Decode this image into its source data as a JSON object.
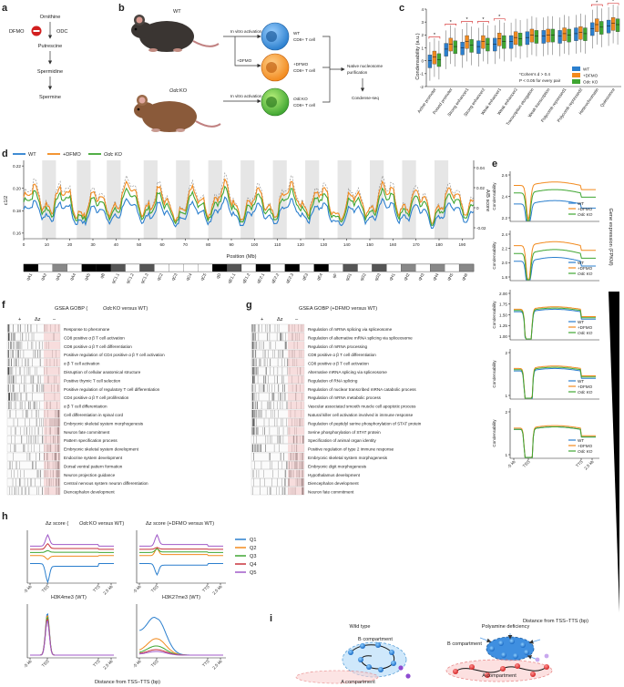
{
  "panel_labels": {
    "a": "a",
    "b": "b",
    "c": "c",
    "d": "d",
    "e": "e",
    "f": "f",
    "g": "g",
    "h": "h",
    "i": "i"
  },
  "colors": {
    "wt": "#2b7fce",
    "dfmo": "#f28a1e",
    "odc": "#3fa632",
    "green_text": "#3a9a2a",
    "red_text": "#c83228",
    "orange_text": "#e67e22",
    "grey_band": "#dcdcdc"
  },
  "panel_a": {
    "ornithine": "Ornithine",
    "dfmo": "DFMO",
    "odc": "ODC",
    "putrescine": "Putrescine",
    "spermidine": "Spermidine",
    "spermine": "Spermine"
  },
  "panel_b": {
    "wt": "WT",
    "odc_ko_prefix": "Odc",
    "odc_ko_suffix": " KO",
    "activation_top": "In vitro activation",
    "activation_bottom": "In vitro activation",
    "plus_dfmo": "+DFMO",
    "cell_wt_1": "WT",
    "cell_wt_2": "CD8+ T cell",
    "cell_dfmo_1": "+DFMO",
    "cell_dfmo_2": "CD8+ T cell",
    "cell_odc_1a": "Odc",
    "cell_odc_1b": " KO",
    "cell_odc_2": "CD8+ T cell",
    "native_1": "Native nucleosome",
    "native_2": "purification",
    "condense": "Condense-seq"
  },
  "panel_c": {
    "ylabel": "Condensability (a.u.)",
    "legend": [
      "WT",
      "+DFMO",
      "Odc KO"
    ],
    "note_1": "*Cohen's d > 0.4",
    "note_2": "P < 0.05 for every pair",
    "chart_data": {
      "type": "box",
      "categories": [
        "Active promoter",
        "Poised promoter",
        "Strong enhancer1",
        "Strong enhancer2",
        "Weak enhancer1",
        "Weak enhancer2",
        "Transcription elongation",
        "Weak transcription",
        "Polycomb repressed1",
        "Polycomb repressed2",
        "Heterochromatin",
        "Quiescence"
      ],
      "ylim": [
        -2,
        4
      ],
      "yticks": [
        "-2",
        "-1",
        "0",
        "1",
        "2",
        "3",
        "4"
      ],
      "series": [
        {
          "name": "WT",
          "medians": [
            0.0,
            0.9,
            1.0,
            1.1,
            1.3,
            1.5,
            1.8,
            1.9,
            1.9,
            2.1,
            2.5,
            2.7
          ]
        },
        {
          "name": "+DFMO",
          "medians": [
            0.3,
            1.3,
            1.5,
            1.5,
            1.7,
            1.8,
            2.0,
            2.0,
            2.1,
            2.2,
            2.8,
            2.9
          ]
        },
        {
          "name": "Odc KO",
          "medians": [
            0.1,
            1.1,
            1.2,
            1.3,
            1.5,
            1.7,
            1.9,
            2.0,
            2.0,
            2.1,
            2.6,
            2.8
          ]
        }
      ],
      "significant": [
        "Active promoter",
        "Poised promoter",
        "Strong enhancer1",
        "Strong enhancer2",
        "Weak enhancer1",
        "Heterochromatin",
        "Quiescence"
      ]
    }
  },
  "panel_d": {
    "ylabel_left": "c1/2",
    "ylabel_right": "A/B score",
    "xlabel": "Position (Mb)",
    "legend": [
      "WT",
      "+DFMO",
      "Odc KO"
    ],
    "chart_data": {
      "type": "line",
      "xlim": [
        0,
        195
      ],
      "xticks": [
        "0",
        "10",
        "20",
        "30",
        "40",
        "50",
        "60",
        "70",
        "80",
        "90",
        "100",
        "110",
        "120",
        "130",
        "140",
        "150",
        "160",
        "170",
        "180",
        "190"
      ],
      "ylim_left": [
        0.155,
        0.225
      ],
      "yticks_left": [
        "0.16",
        "0.18",
        "0.20",
        "0.22"
      ],
      "yticks_right": [
        "0.04",
        "0.02",
        "0",
        "-0.02"
      ],
      "series": [
        {
          "name": "WT",
          "mean": 0.178
        },
        {
          "name": "+DFMO",
          "mean": 0.188
        },
        {
          "name": "Odc KO",
          "mean": 0.184
        }
      ]
    },
    "bands": [
      "qA1",
      "qA2",
      "qA3",
      "qA4",
      "qA5",
      "qB",
      "qC1.1",
      "qC1.2",
      "qC1.3",
      "qC2",
      "qC3",
      "qC4",
      "qC5",
      "qD",
      "qE1.1",
      "qE1.2",
      "qE2.1",
      "qE2.2",
      "qE2.3",
      "qE3",
      "qE4",
      "qF",
      "qG1",
      "qG2",
      "qG3",
      "qH1",
      "qH2",
      "qH3",
      "qH4",
      "qH5",
      "qH6"
    ]
  },
  "panel_e": {
    "ylabel": "Condensability",
    "xlabel": "Distance from TSS–TTS (bp)",
    "side_label": "Gene expression (FPKM)",
    "legend": [
      "WT",
      "+DFMO",
      "Odc KO"
    ],
    "ticks_x": [
      "-5 kb",
      "TSS",
      "TTS",
      "2.5 kb"
    ],
    "chart_data": {
      "type": "line",
      "subplots": [
        {
          "yticks": [
            "2.2",
            "2.4",
            "2.6"
          ],
          "wt": 2.28,
          "dfmo": 2.55,
          "odc": 2.44
        },
        {
          "yticks": [
            "1.8",
            "2.0",
            "2.2",
            "2.4"
          ],
          "wt": 2.15,
          "dfmo": 2.35,
          "odc": 2.25
        },
        {
          "yticks": [
            "1.00",
            "1.25",
            "1.50",
            "1.75",
            "2.00"
          ],
          "wt": 1.93,
          "dfmo": 1.95,
          "odc": 1.94
        },
        {
          "yticks": [
            "1",
            "2"
          ],
          "wt": 1.95,
          "dfmo": 1.97,
          "odc": 1.96
        },
        {
          "yticks": [
            "1",
            "2"
          ],
          "wt": 1.95,
          "dfmo": 1.96,
          "odc": 1.95
        }
      ]
    }
  },
  "panel_f": {
    "title": "GSEA GOBP (",
    "title_it": "Odc",
    "title_end": " KO versus WT)",
    "dz": "Δz",
    "plus": "+",
    "minus": "–",
    "terms": [
      {
        "text": "Response to pheromone",
        "c": "g"
      },
      {
        "text": "CD8 positive α β T cell activation",
        "c": "g"
      },
      {
        "text": "CD8 positive α β T cell differentiation",
        "c": "g"
      },
      {
        "text": "Positive regulation of CD4 positive α β T cell activation",
        "c": "g"
      },
      {
        "text": "α β T cell activation",
        "c": "g"
      },
      {
        "text": "Disruption of cellular anatomical structure",
        "c": "g"
      },
      {
        "text": "Positive thymic T cell selection",
        "c": "g"
      },
      {
        "text": "Positive regulation of regulatory T cell differentiation",
        "c": "g"
      },
      {
        "text": "CD4 positive α β T cell proliferation",
        "c": "g"
      },
      {
        "text": "α β T cell differentiation",
        "c": "g"
      },
      {
        "text": "Cell differentiation in spinal cord",
        "c": "r"
      },
      {
        "text": "Embryonic skeletal system morphogenesis",
        "c": "r"
      },
      {
        "text": "Neuron fate commitment",
        "c": "r"
      },
      {
        "text": "Pattern specification process",
        "c": "r"
      },
      {
        "text": "Embryonic skeletal system development",
        "c": "r"
      },
      {
        "text": "Endocrine system development",
        "c": "r"
      },
      {
        "text": "Dorsal ventral pattern formation",
        "c": "r"
      },
      {
        "text": "Neuron projection guidance",
        "c": "r"
      },
      {
        "text": "Central nervous system neuron differentiation",
        "c": "r"
      },
      {
        "text": "Diencephalon development",
        "c": "r"
      }
    ]
  },
  "panel_g": {
    "title": "GSEA GOBP (+DFMO versus WT)",
    "dz": "Δz",
    "plus": "+",
    "minus": "–",
    "terms": [
      {
        "text": "Regulation of mRNA splicing via spliceosome",
        "c": "o"
      },
      {
        "text": "Regulation of alternative mRNA splicing via spliceosome",
        "c": "o"
      },
      {
        "text": "Regulation of mRNA processing",
        "c": "o"
      },
      {
        "text": "CD8 positive α β T cell differentiation",
        "c": "g"
      },
      {
        "text": "CD8 positive α β T cell activation",
        "c": "g"
      },
      {
        "text": "Alternative mRNA splicing via spliceosome",
        "c": "o"
      },
      {
        "text": "Regulation of RNA splicing",
        "c": "o"
      },
      {
        "text": "Regulation of nuclear transcribed mRNA catabolic process",
        "c": "g"
      },
      {
        "text": "Regulation of mRNA metabolic process",
        "c": "o"
      },
      {
        "text": "Vascular associated smooth muscle cell apoptotic process",
        "c": "g"
      },
      {
        "text": "Natural killer cell activation involved in immune response",
        "c": "g"
      },
      {
        "text": "Regulation of peptidyl serine phosphorylation of STAT protein",
        "c": "g"
      },
      {
        "text": "Serine phosphorylation of STAT protein",
        "c": "g"
      },
      {
        "text": "Specification of animal organ identity",
        "c": "r"
      },
      {
        "text": "Positive regulation of type 2 immune response",
        "c": "g"
      },
      {
        "text": "Embryonic skeletal system morphogenesis",
        "c": "r"
      },
      {
        "text": "Embryonic digit morphogenesis",
        "c": "r"
      },
      {
        "text": "Hypothalamus development",
        "c": "r"
      },
      {
        "text": "Diencephalon development",
        "c": "r"
      },
      {
        "text": "Neuron fate commitment",
        "c": "r"
      }
    ]
  },
  "panel_h": {
    "title_1_a": "Δz score (",
    "title_1_it": "Odc",
    "title_1_b": " KO versus WT)",
    "title_2": "Δz score (+DFMO versus WT)",
    "title_3": "H3K4me3 (WT)",
    "title_4": "H3K27me3 (WT)",
    "xlabel": "Distance from TSS–TTS (bp)",
    "ticks_x": [
      "-5 kb",
      "TSS",
      "TTS",
      "2.5 kb"
    ],
    "legend": [
      "Q1",
      "Q2",
      "Q3",
      "Q4",
      "Q5"
    ],
    "legend_colors": [
      "#2b7fce",
      "#f28a1e",
      "#3fa632",
      "#c8323c",
      "#a05ac8"
    ]
  },
  "panel_i": {
    "title_left": "Wild type",
    "title_right": "Polyamine deficiency",
    "b_left": "B compartment",
    "b_right": "B compartment",
    "a_left": "A compartment",
    "a_right": "A compartment"
  }
}
